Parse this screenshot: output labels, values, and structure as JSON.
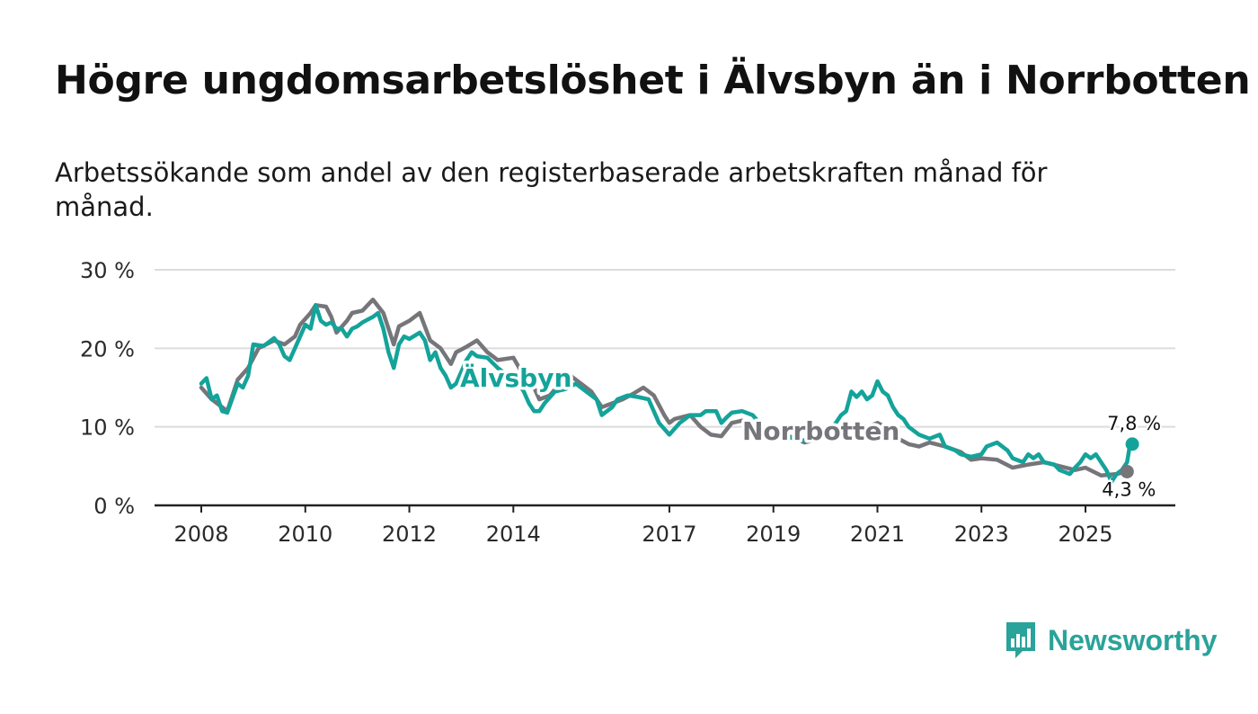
{
  "title": "Högre ungdomsarbetslöshet i Älvsbyn än i Norrbotten",
  "subtitle": "Arbetssökande som andel av den registerbaserade arbetskraften månad för månad.",
  "colors": {
    "alvsbyn": "#14a39a",
    "norrbotten": "#76757a",
    "grid": "#dcdcdc",
    "axis": "#222222"
  },
  "brand": {
    "name": "Newsworthy",
    "icon": "bar-chart-speech-icon",
    "color": "#2aa39a"
  },
  "chart_data": {
    "type": "line",
    "title": "Högre ungdomsarbetslöshet i Älvsbyn än i Norrbotten",
    "xlabel": "",
    "ylabel": "",
    "xlim": [
      2007.4,
      2026.3
    ],
    "ylim": [
      0,
      30
    ],
    "yticks": [
      0,
      10,
      20,
      30
    ],
    "ytick_labels": [
      "0 %",
      "10 %",
      "20 %",
      "30 %"
    ],
    "xticks": [
      2008,
      2010,
      2012,
      2014,
      2017,
      2019,
      2021,
      2023,
      2025
    ],
    "xtick_labels": [
      "2008",
      "2010",
      "2012",
      "2014",
      "2017",
      "2019",
      "2021",
      "2023",
      "2025"
    ],
    "grid": true,
    "legend": "inline labels",
    "series": [
      {
        "name": "Norrbotten",
        "color_key": "norrbotten",
        "label": "Norrbotten",
        "end_label": "4,3 %",
        "points": [
          [
            2008.0,
            15.0
          ],
          [
            2008.2,
            13.5
          ],
          [
            2008.4,
            12.5
          ],
          [
            2008.5,
            12.0
          ],
          [
            2008.7,
            16.0
          ],
          [
            2008.9,
            17.5
          ],
          [
            2009.1,
            20.0
          ],
          [
            2009.4,
            21.0
          ],
          [
            2009.6,
            20.5
          ],
          [
            2009.8,
            21.5
          ],
          [
            2009.9,
            23.0
          ],
          [
            2010.1,
            24.5
          ],
          [
            2010.2,
            25.5
          ],
          [
            2010.4,
            25.3
          ],
          [
            2010.5,
            24.0
          ],
          [
            2010.6,
            22.0
          ],
          [
            2010.8,
            23.5
          ],
          [
            2010.9,
            24.5
          ],
          [
            2011.1,
            24.8
          ],
          [
            2011.3,
            26.2
          ],
          [
            2011.5,
            24.5
          ],
          [
            2011.7,
            20.5
          ],
          [
            2011.8,
            22.8
          ],
          [
            2012.0,
            23.5
          ],
          [
            2012.2,
            24.5
          ],
          [
            2012.4,
            21.0
          ],
          [
            2012.6,
            20.0
          ],
          [
            2012.8,
            18.0
          ],
          [
            2012.9,
            19.5
          ],
          [
            2013.1,
            20.2
          ],
          [
            2013.3,
            21.0
          ],
          [
            2013.5,
            19.5
          ],
          [
            2013.7,
            18.5
          ],
          [
            2014.0,
            18.8
          ],
          [
            2014.2,
            16.5
          ],
          [
            2014.4,
            15.0
          ],
          [
            2014.5,
            13.5
          ],
          [
            2014.7,
            14.0
          ],
          [
            2014.9,
            15.5
          ],
          [
            2015.1,
            16.5
          ],
          [
            2015.3,
            15.5
          ],
          [
            2015.5,
            14.5
          ],
          [
            2015.7,
            12.5
          ],
          [
            2015.9,
            13.0
          ],
          [
            2016.1,
            13.5
          ],
          [
            2016.3,
            14.2
          ],
          [
            2016.5,
            15.0
          ],
          [
            2016.7,
            14.0
          ],
          [
            2016.9,
            11.5
          ],
          [
            2017.0,
            10.5
          ],
          [
            2017.1,
            11.0
          ],
          [
            2017.4,
            11.5
          ],
          [
            2017.6,
            10.0
          ],
          [
            2017.8,
            9.0
          ],
          [
            2018.0,
            8.8
          ],
          [
            2018.2,
            10.5
          ],
          [
            2018.4,
            10.8
          ],
          [
            2018.6,
            10.2
          ],
          [
            2018.8,
            9.8
          ],
          [
            2019.0,
            9.5
          ],
          [
            2019.3,
            8.8
          ],
          [
            2019.6,
            8.0
          ],
          [
            2019.9,
            8.5
          ],
          [
            2020.2,
            9.2
          ],
          [
            2020.5,
            9.6
          ],
          [
            2020.8,
            10.0
          ],
          [
            2021.0,
            10.5
          ],
          [
            2021.2,
            9.8
          ],
          [
            2021.4,
            8.5
          ],
          [
            2021.6,
            7.8
          ],
          [
            2021.8,
            7.5
          ],
          [
            2022.0,
            8.0
          ],
          [
            2022.3,
            7.5
          ],
          [
            2022.6,
            6.8
          ],
          [
            2022.8,
            5.8
          ],
          [
            2023.0,
            6.0
          ],
          [
            2023.3,
            5.8
          ],
          [
            2023.6,
            4.8
          ],
          [
            2023.9,
            5.2
          ],
          [
            2024.2,
            5.5
          ],
          [
            2024.5,
            5.0
          ],
          [
            2024.8,
            4.5
          ],
          [
            2025.0,
            4.8
          ],
          [
            2025.3,
            3.8
          ],
          [
            2025.6,
            4.0
          ],
          [
            2025.8,
            4.3
          ]
        ]
      },
      {
        "name": "Älvsbyn",
        "color_key": "alvsbyn",
        "label": "Älvsbyn",
        "end_label": "7,8 %",
        "points": [
          [
            2008.0,
            15.5
          ],
          [
            2008.1,
            16.2
          ],
          [
            2008.2,
            13.5
          ],
          [
            2008.3,
            14.0
          ],
          [
            2008.4,
            12.0
          ],
          [
            2008.5,
            11.8
          ],
          [
            2008.7,
            15.5
          ],
          [
            2008.8,
            15.0
          ],
          [
            2008.9,
            16.5
          ],
          [
            2009.0,
            20.5
          ],
          [
            2009.2,
            20.3
          ],
          [
            2009.4,
            21.3
          ],
          [
            2009.5,
            20.5
          ],
          [
            2009.6,
            19.0
          ],
          [
            2009.7,
            18.5
          ],
          [
            2009.9,
            21.5
          ],
          [
            2010.0,
            23.0
          ],
          [
            2010.1,
            22.5
          ],
          [
            2010.2,
            25.5
          ],
          [
            2010.3,
            23.5
          ],
          [
            2010.4,
            23.0
          ],
          [
            2010.5,
            23.3
          ],
          [
            2010.6,
            22.5
          ],
          [
            2010.7,
            22.5
          ],
          [
            2010.8,
            21.5
          ],
          [
            2010.9,
            22.5
          ],
          [
            2011.0,
            22.8
          ],
          [
            2011.1,
            23.3
          ],
          [
            2011.3,
            24.0
          ],
          [
            2011.4,
            24.5
          ],
          [
            2011.5,
            22.5
          ],
          [
            2011.6,
            19.5
          ],
          [
            2011.7,
            17.5
          ],
          [
            2011.8,
            20.5
          ],
          [
            2011.9,
            21.5
          ],
          [
            2012.0,
            21.2
          ],
          [
            2012.2,
            22.0
          ],
          [
            2012.3,
            21.0
          ],
          [
            2012.4,
            18.5
          ],
          [
            2012.5,
            19.5
          ],
          [
            2012.6,
            17.5
          ],
          [
            2012.7,
            16.5
          ],
          [
            2012.8,
            15.0
          ],
          [
            2012.9,
            15.5
          ],
          [
            2013.0,
            17.0
          ],
          [
            2013.1,
            18.5
          ],
          [
            2013.2,
            19.5
          ],
          [
            2013.3,
            19.0
          ],
          [
            2013.5,
            18.8
          ],
          [
            2013.7,
            17.5
          ],
          [
            2013.9,
            16.5
          ],
          [
            2014.1,
            15.5
          ],
          [
            2014.2,
            14.5
          ],
          [
            2014.3,
            13.0
          ],
          [
            2014.4,
            12.0
          ],
          [
            2014.5,
            12.0
          ],
          [
            2014.6,
            13.0
          ],
          [
            2014.8,
            14.5
          ],
          [
            2015.0,
            14.8
          ],
          [
            2015.2,
            15.5
          ],
          [
            2015.4,
            14.5
          ],
          [
            2015.6,
            13.5
          ],
          [
            2015.7,
            11.5
          ],
          [
            2015.9,
            12.5
          ],
          [
            2016.0,
            13.5
          ],
          [
            2016.2,
            14.0
          ],
          [
            2016.4,
            13.8
          ],
          [
            2016.6,
            13.5
          ],
          [
            2016.8,
            10.5
          ],
          [
            2017.0,
            9.0
          ],
          [
            2017.2,
            10.5
          ],
          [
            2017.4,
            11.5
          ],
          [
            2017.6,
            11.5
          ],
          [
            2017.7,
            12.0
          ],
          [
            2017.9,
            12.0
          ],
          [
            2018.0,
            10.5
          ],
          [
            2018.1,
            11.2
          ],
          [
            2018.2,
            11.8
          ],
          [
            2018.4,
            12.0
          ],
          [
            2018.6,
            11.5
          ],
          [
            2018.8,
            10.0
          ],
          [
            2019.0,
            9.5
          ],
          [
            2019.2,
            9.0
          ],
          [
            2019.5,
            8.2
          ],
          [
            2019.8,
            8.5
          ],
          [
            2020.0,
            9.0
          ],
          [
            2020.2,
            10.5
          ],
          [
            2020.3,
            11.5
          ],
          [
            2020.4,
            12.0
          ],
          [
            2020.5,
            14.5
          ],
          [
            2020.6,
            13.8
          ],
          [
            2020.7,
            14.5
          ],
          [
            2020.8,
            13.5
          ],
          [
            2020.9,
            14.0
          ],
          [
            2021.0,
            15.8
          ],
          [
            2021.1,
            14.5
          ],
          [
            2021.2,
            14.0
          ],
          [
            2021.3,
            12.5
          ],
          [
            2021.4,
            11.5
          ],
          [
            2021.5,
            11.0
          ],
          [
            2021.6,
            10.0
          ],
          [
            2021.8,
            9.0
          ],
          [
            2022.0,
            8.5
          ],
          [
            2022.2,
            9.0
          ],
          [
            2022.3,
            7.5
          ],
          [
            2022.5,
            7.0
          ],
          [
            2022.6,
            6.5
          ],
          [
            2022.8,
            6.2
          ],
          [
            2023.0,
            6.5
          ],
          [
            2023.1,
            7.5
          ],
          [
            2023.3,
            8.0
          ],
          [
            2023.5,
            7.0
          ],
          [
            2023.6,
            6.0
          ],
          [
            2023.8,
            5.5
          ],
          [
            2023.9,
            6.5
          ],
          [
            2024.0,
            6.0
          ],
          [
            2024.1,
            6.5
          ],
          [
            2024.2,
            5.5
          ],
          [
            2024.4,
            5.2
          ],
          [
            2024.5,
            4.5
          ],
          [
            2024.7,
            4.0
          ],
          [
            2024.8,
            4.8
          ],
          [
            2024.9,
            5.5
          ],
          [
            2025.0,
            6.5
          ],
          [
            2025.1,
            6.0
          ],
          [
            2025.2,
            6.5
          ],
          [
            2025.3,
            5.5
          ],
          [
            2025.4,
            4.5
          ],
          [
            2025.5,
            3.0
          ],
          [
            2025.6,
            4.0
          ],
          [
            2025.7,
            4.5
          ],
          [
            2025.8,
            5.5
          ],
          [
            2025.85,
            7.5
          ],
          [
            2025.9,
            7.8
          ]
        ]
      }
    ]
  }
}
